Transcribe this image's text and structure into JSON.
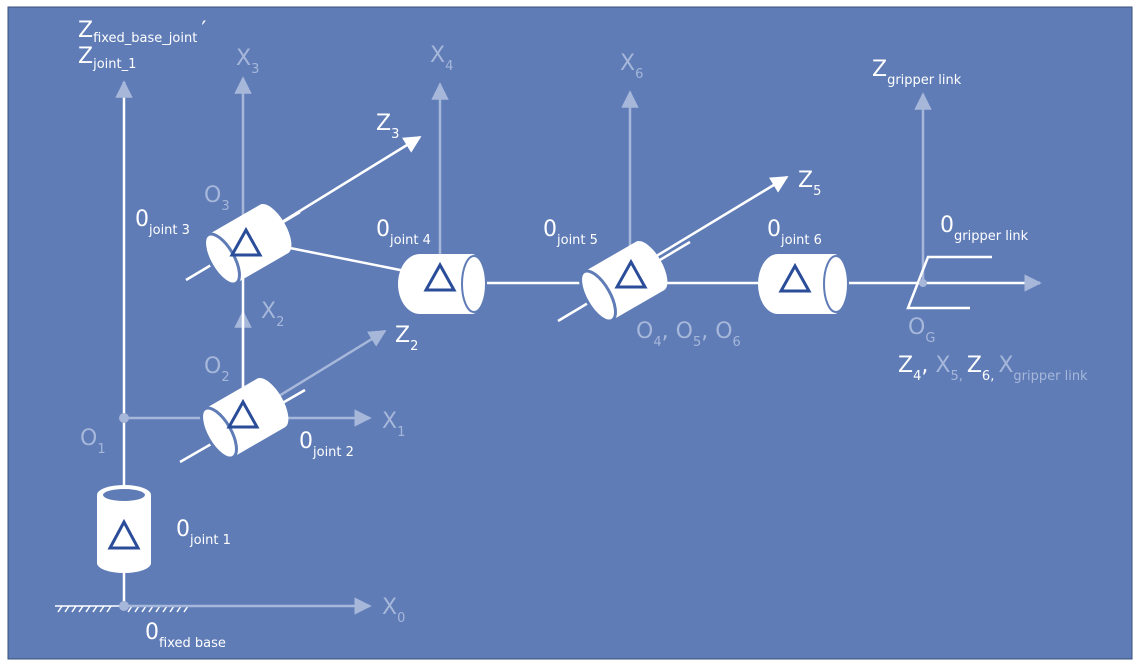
{
  "colors": {
    "background": "#5f7cb7",
    "frame": "#3b4f7a",
    "white": "#ffffff",
    "faint_axis": "#a6b7da",
    "triangle": "#2a4c99"
  },
  "labels": {
    "z_base_main": "Z",
    "z_base_sub": "fixed_base_joint",
    "z_base_prime": "′",
    "z_joint1_main": "Z",
    "z_joint1_sub": "joint_1",
    "x3_main": "X",
    "x3_sub": "3",
    "x4_main": "X",
    "x4_sub": "4",
    "x6_main": "X",
    "x6_sub": "6",
    "z_gripper_main": "Z",
    "z_gripper_sub": "gripper link",
    "z3_main": "Z",
    "z3_sub": "3",
    "z5_main": "Z",
    "z5_sub": "5",
    "z2_main": "Z",
    "z2_sub": "2",
    "x2_main": "X",
    "x2_sub": "2",
    "x1_main": "X",
    "x1_sub": "1",
    "x0_main": "X",
    "x0_sub": "0",
    "o3_main": "O",
    "o3_sub": "3",
    "o2_main": "O",
    "o2_sub": "2",
    "o1_main": "O",
    "o1_sub": "1",
    "og_main": "O",
    "og_sub": "G",
    "o456_o4": "O",
    "o456_4": "4",
    "o456_c1": ", ",
    "o456_o5": "O",
    "o456_5": "5",
    "o456_c2": ", ",
    "o456_o6": "O",
    "o456_6": "6",
    "joint3_main": "0",
    "joint3_sub": "joint 3",
    "joint4_main": "0",
    "joint4_sub": "joint 4",
    "joint5_main": "0",
    "joint5_sub": "joint 5",
    "joint6_main": "0",
    "joint6_sub": "joint 6",
    "joint2_main": "0",
    "joint2_sub": "joint 2",
    "joint1_main": "0",
    "joint1_sub": "joint 1",
    "gripper_main": "0",
    "gripper_sub": "gripper link",
    "fixedbase_main": "0",
    "fixedbase_sub": "fixed base",
    "axes_z4": "Z",
    "axes_4": "4",
    "axes_c1": ", ",
    "axes_x5": "X",
    "axes_5": "5,",
    "axes_z6": "Z",
    "axes_6": "6,",
    "axes_xg": "X",
    "axes_g": "gripper link"
  }
}
